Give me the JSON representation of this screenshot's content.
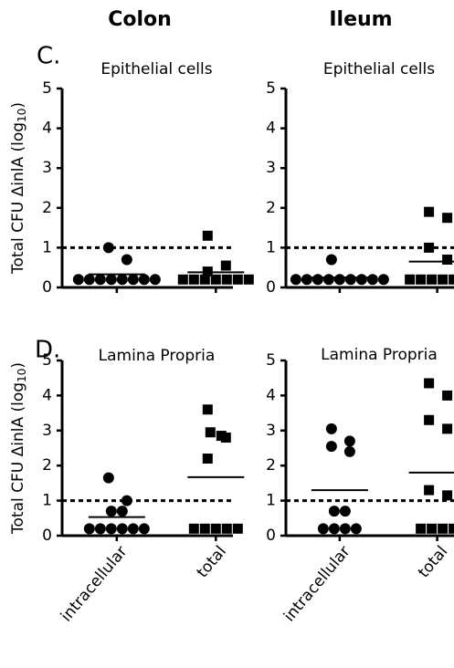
{
  "column_headers": [
    "Colon",
    "Ileum"
  ],
  "panel_labels": [
    "C.",
    "D."
  ],
  "chart_data": [
    {
      "type": "strip",
      "title": "Epithelial cells",
      "ylabel": [
        "Total CFU ΔinlA (log",
        "10",
        ")"
      ],
      "categories": [
        null,
        null
      ],
      "markers": [
        "circle",
        "square"
      ],
      "groups": [
        [
          1.0,
          0.7,
          0.2,
          0.2,
          0.2,
          0.2,
          0.2,
          0.2,
          0.2,
          0.2
        ],
        [
          1.3,
          0.55,
          0.4,
          0.2,
          0.2,
          0.2,
          0.2,
          0.2,
          0.2,
          0.2
        ]
      ],
      "means": [
        0.33,
        0.38
      ],
      "reference_line": 1,
      "ylim": [
        0,
        5
      ],
      "yticks": [
        0,
        1,
        2,
        3,
        4,
        5
      ]
    },
    {
      "type": "strip",
      "title": "Epithelial cells",
      "categories": [
        null,
        null
      ],
      "markers": [
        "circle",
        "square"
      ],
      "groups": [
        [
          0.7,
          0.2,
          0.2,
          0.2,
          0.2,
          0.2,
          0.2,
          0.2,
          0.2,
          0.2
        ],
        [
          1.9,
          1.75,
          1.0,
          0.7,
          0.2,
          0.2,
          0.2,
          0.2,
          0.2,
          0.2
        ]
      ],
      "means": [
        0.25,
        0.65
      ],
      "reference_line": 1,
      "ylim": [
        0,
        5
      ],
      "yticks": [
        0,
        1,
        2,
        3,
        4,
        5
      ]
    },
    {
      "type": "strip",
      "title": "Lamina Propria",
      "ylabel": [
        "Total CFU ΔinlA (log",
        "10",
        ")"
      ],
      "categories": [
        "intracellular",
        "total"
      ],
      "markers": [
        "circle",
        "square"
      ],
      "groups": [
        [
          1.65,
          1.0,
          0.7,
          0.7,
          0.2,
          0.2,
          0.2,
          0.2,
          0.2,
          0.2
        ],
        [
          3.6,
          2.95,
          2.85,
          2.8,
          2.2,
          0.2,
          0.2,
          0.2,
          0.2,
          0.2
        ]
      ],
      "means": [
        0.53,
        1.67
      ],
      "reference_line": 1,
      "ylim": [
        0,
        5
      ],
      "yticks": [
        0,
        1,
        2,
        3,
        4,
        5
      ]
    },
    {
      "type": "strip",
      "title": "Lamina Propria",
      "categories": [
        "intracellular",
        "total"
      ],
      "markers": [
        "circle",
        "square"
      ],
      "groups": [
        [
          3.05,
          2.7,
          2.55,
          2.4,
          0.7,
          0.7,
          0.2,
          0.2,
          0.2,
          0.2
        ],
        [
          4.35,
          4.0,
          3.3,
          3.05,
          1.3,
          1.15,
          0.2,
          0.2,
          0.2,
          0.2
        ]
      ],
      "means": [
        1.3,
        1.8
      ],
      "reference_line": 1,
      "ylim": [
        0,
        5
      ],
      "yticks": [
        0,
        1,
        2,
        3,
        4,
        5
      ]
    }
  ]
}
